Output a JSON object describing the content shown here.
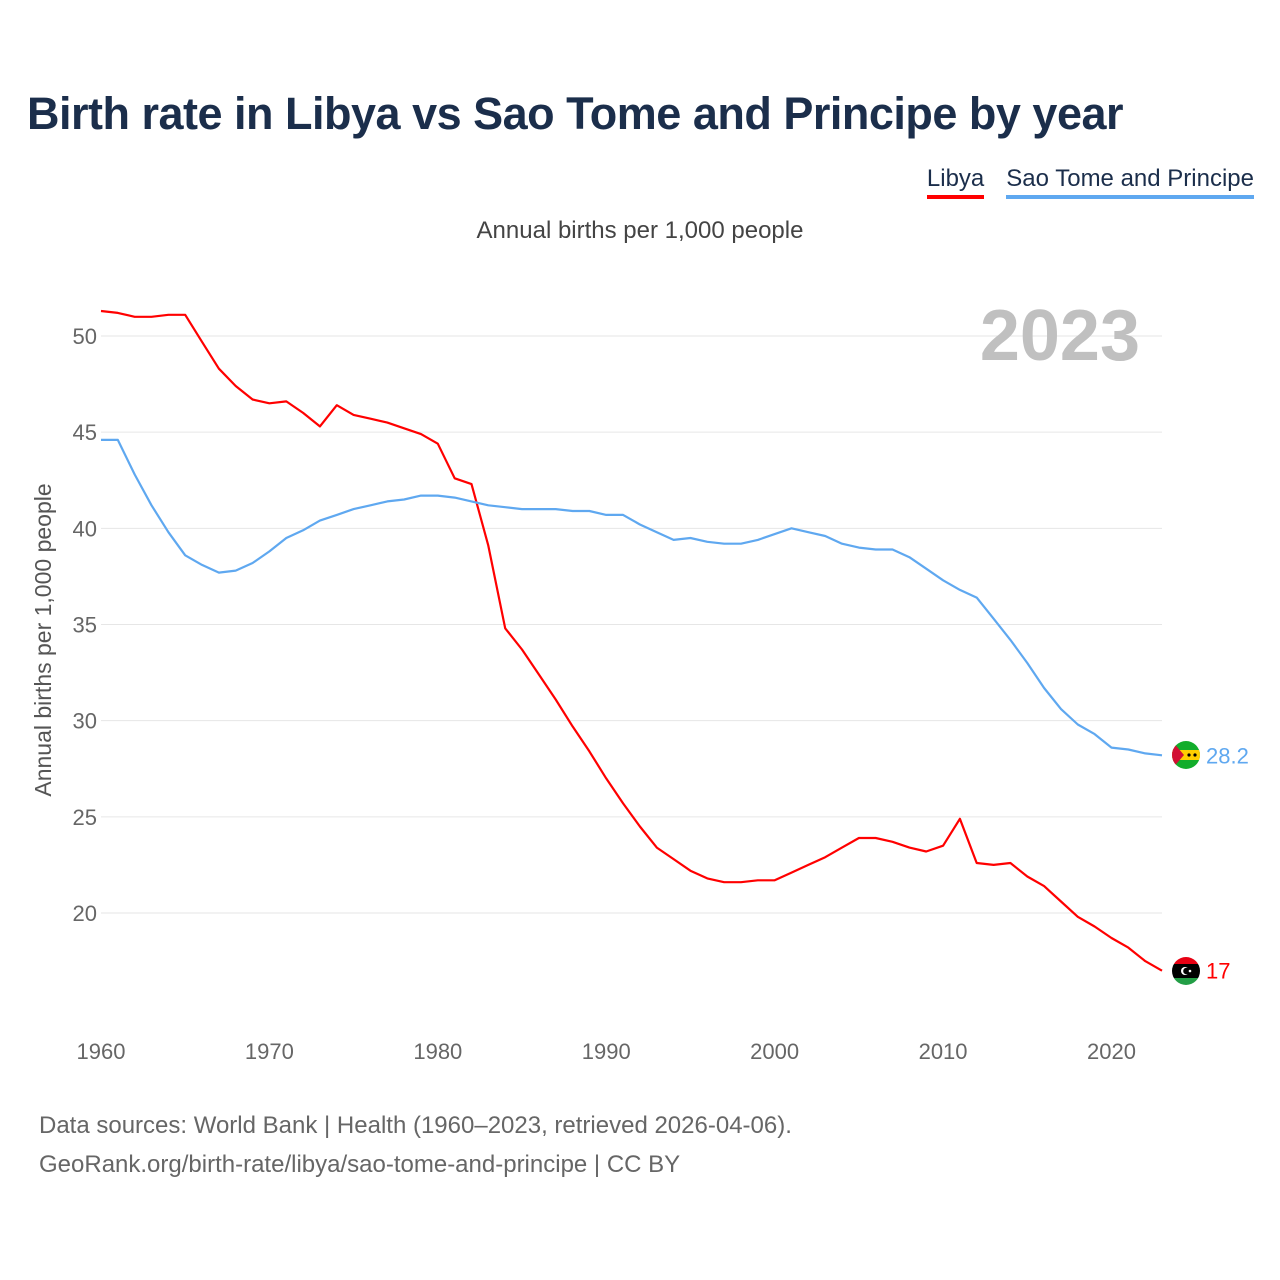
{
  "title": "Birth rate in Libya vs Sao Tome and Principe by year",
  "subtitle": "Annual births per 1,000 people",
  "source_line1": "Data sources: World Bank | Health (1960–2023, retrieved 2026-04-06).",
  "source_line2": "GeoRank.org/birth-rate/libya/sao-tome-and-principe | CC BY",
  "chart_data": {
    "type": "line",
    "title": "Birth rate in Libya vs Sao Tome and Principe by year",
    "xlabel": "",
    "ylabel": "Annual births per 1,000 people",
    "year_watermark": "2023",
    "xlim": [
      1960,
      2023
    ],
    "ylim": [
      20,
      50
    ],
    "xticks": [
      "1960",
      "1970",
      "1980",
      "1990",
      "2000",
      "2010",
      "2020"
    ],
    "yticks": [
      "20",
      "25",
      "30",
      "35",
      "40",
      "45",
      "50"
    ],
    "grid": true,
    "legend_position": "top-right",
    "x": [
      1960,
      1961,
      1962,
      1963,
      1964,
      1965,
      1966,
      1967,
      1968,
      1969,
      1970,
      1971,
      1972,
      1973,
      1974,
      1975,
      1976,
      1977,
      1978,
      1979,
      1980,
      1981,
      1982,
      1983,
      1984,
      1985,
      1986,
      1987,
      1988,
      1989,
      1990,
      1991,
      1992,
      1993,
      1994,
      1995,
      1996,
      1997,
      1998,
      1999,
      2000,
      2001,
      2002,
      2003,
      2004,
      2005,
      2006,
      2007,
      2008,
      2009,
      2010,
      2011,
      2012,
      2013,
      2014,
      2015,
      2016,
      2017,
      2018,
      2019,
      2020,
      2021,
      2022,
      2023
    ],
    "series": [
      {
        "name": "Libya",
        "color": "#ff0000",
        "end_label": "17",
        "values": [
          51.3,
          51.2,
          51.0,
          51.0,
          51.1,
          51.1,
          49.7,
          48.3,
          47.4,
          46.7,
          46.5,
          46.6,
          46.0,
          45.3,
          46.4,
          45.9,
          45.7,
          45.5,
          45.2,
          44.9,
          44.4,
          42.6,
          42.3,
          39.1,
          34.8,
          33.7,
          32.4,
          31.1,
          29.7,
          28.4,
          27.0,
          25.7,
          24.5,
          23.4,
          22.8,
          22.2,
          21.8,
          21.6,
          21.6,
          21.7,
          21.7,
          22.1,
          22.5,
          22.9,
          23.4,
          23.9,
          23.9,
          23.7,
          23.4,
          23.2,
          23.5,
          24.9,
          22.6,
          22.5,
          22.6,
          21.9,
          21.4,
          20.6,
          19.8,
          19.3,
          18.7,
          18.2,
          17.5,
          17.0
        ]
      },
      {
        "name": "Sao Tome and Principe",
        "color": "#5fa8f0",
        "end_label": "28.2",
        "values": [
          44.6,
          44.6,
          42.8,
          41.2,
          39.8,
          38.6,
          38.1,
          37.7,
          37.8,
          38.2,
          38.8,
          39.5,
          39.9,
          40.4,
          40.7,
          41.0,
          41.2,
          41.4,
          41.5,
          41.7,
          41.7,
          41.6,
          41.4,
          41.2,
          41.1,
          41.0,
          41.0,
          41.0,
          40.9,
          40.9,
          40.7,
          40.7,
          40.2,
          39.8,
          39.4,
          39.5,
          39.3,
          39.2,
          39.2,
          39.4,
          39.7,
          40.0,
          39.8,
          39.6,
          39.2,
          39.0,
          38.9,
          38.9,
          38.5,
          37.9,
          37.3,
          36.8,
          36.4,
          35.3,
          34.2,
          33.0,
          31.7,
          30.6,
          29.8,
          29.3,
          28.6,
          28.5,
          28.3,
          28.2
        ]
      }
    ]
  }
}
